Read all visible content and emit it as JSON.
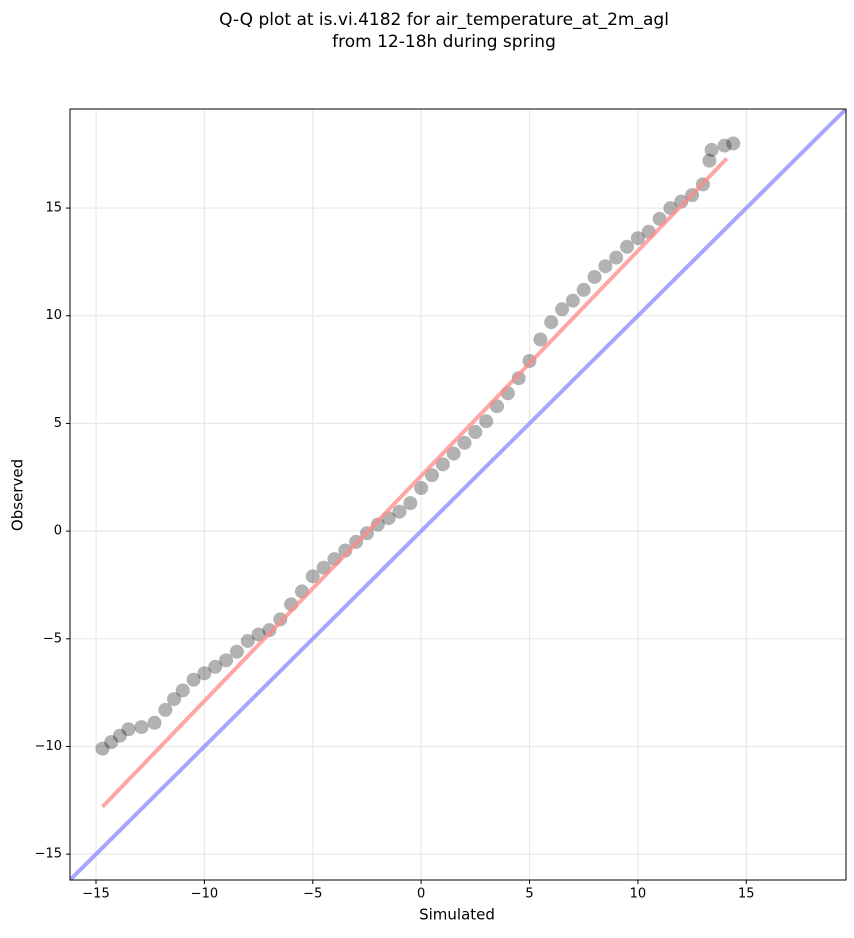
{
  "chart_data": {
    "type": "scatter",
    "title": [
      "Q-Q plot at is.vi.4182 for air_temperature_at_2m_agl",
      "from 12-18h during spring"
    ],
    "x_label": "Simulated",
    "y_label": "Observed",
    "xlim": [
      -16.2,
      19.6
    ],
    "ylim": [
      -16.2,
      19.6
    ],
    "xticks": [
      {
        "value": -15,
        "label": "−15"
      },
      {
        "value": -10,
        "label": "−10"
      },
      {
        "value": -5,
        "label": "−5"
      },
      0,
      5,
      10,
      15
    ],
    "yticks": [
      {
        "value": -15,
        "label": "−15"
      },
      {
        "value": -10,
        "label": "−10"
      },
      {
        "value": -5,
        "label": "−5"
      },
      0,
      5,
      10,
      15
    ],
    "grid": true,
    "color": "#000000",
    "x": [
      -14.7,
      -14.3,
      -13.9,
      -13.5,
      -12.9,
      -12.3,
      -11.8,
      -11.4,
      -11.0,
      -10.5,
      -10.0,
      -9.5,
      -9.0,
      -8.5,
      -8.0,
      -7.5,
      -7.0,
      -6.5,
      -6.0,
      -5.5,
      -5.0,
      -4.5,
      -4.0,
      -3.5,
      -3.0,
      -2.5,
      -2.0,
      -1.5,
      -1.0,
      -0.5,
      0,
      0.5,
      1.0,
      1.5,
      2.0,
      2.5,
      3.0,
      3.5,
      4.0,
      4.5,
      5.0,
      5.5,
      6.0,
      6.5,
      7.0,
      7.5,
      8.0,
      8.5,
      9.0,
      9.5,
      10.0,
      10.5,
      11.0,
      11.5,
      12.0,
      12.5,
      13.0,
      13.3,
      13.4,
      14.0,
      14.4
    ],
    "values": [
      -10.1,
      -9.8,
      -9.5,
      -9.2,
      -9.1,
      -8.9,
      -8.3,
      -7.8,
      -7.4,
      -6.9,
      -6.6,
      -6.3,
      -6.0,
      -5.6,
      -5.1,
      -4.8,
      -4.6,
      -4.1,
      -3.4,
      -2.8,
      -2.1,
      -1.7,
      -1.3,
      -0.9,
      -0.5,
      -0.1,
      0.3,
      0.6,
      0.9,
      1.3,
      2.0,
      2.6,
      3.1,
      3.6,
      4.1,
      4.6,
      5.1,
      5.8,
      6.4,
      7.1,
      7.9,
      8.9,
      9.7,
      10.3,
      10.7,
      11.2,
      11.8,
      12.3,
      12.7,
      13.2,
      13.6,
      13.9,
      14.5,
      15.0,
      15.3,
      15.6,
      16.1,
      17.2,
      17.7,
      17.9,
      18.0
    ],
    "fit_line": {
      "x": [
        -14.7,
        14.1
      ],
      "y": [
        -12.8,
        17.3
      ],
      "color": "#ff8888"
    },
    "identity_line": {
      "x": [
        -16.2,
        19.6
      ],
      "y": [
        -16.2,
        19.6
      ],
      "color": "#8888ff"
    }
  }
}
